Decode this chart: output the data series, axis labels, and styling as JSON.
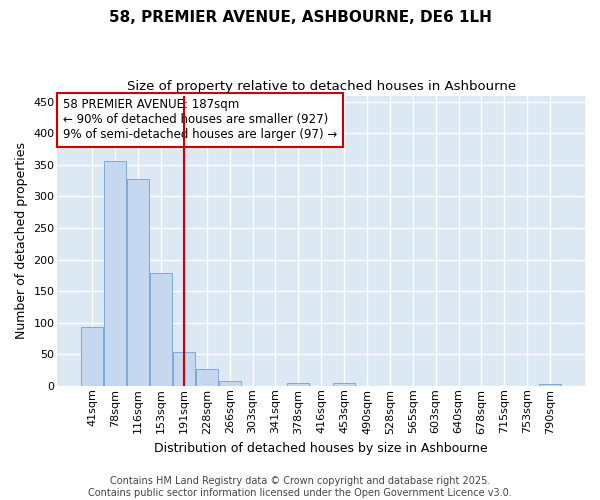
{
  "title": "58, PREMIER AVENUE, ASHBOURNE, DE6 1LH",
  "subtitle": "Size of property relative to detached houses in Ashbourne",
  "xlabel": "Distribution of detached houses by size in Ashbourne",
  "ylabel": "Number of detached properties",
  "categories": [
    "41sqm",
    "78sqm",
    "116sqm",
    "153sqm",
    "191sqm",
    "228sqm",
    "266sqm",
    "303sqm",
    "341sqm",
    "378sqm",
    "416sqm",
    "453sqm",
    "490sqm",
    "528sqm",
    "565sqm",
    "603sqm",
    "640sqm",
    "678sqm",
    "715sqm",
    "753sqm",
    "790sqm"
  ],
  "values": [
    93,
    357,
    328,
    178,
    53,
    26,
    7,
    0,
    0,
    5,
    0,
    4,
    0,
    0,
    0,
    0,
    0,
    0,
    0,
    0,
    3
  ],
  "bar_color": "#c5d8f0",
  "bar_edge_color": "#7aaad4",
  "plot_bg_color": "#dde8f5",
  "fig_bg_color": "#ffffff",
  "grid_color": "#ffffff",
  "vline_x": 4.0,
  "vline_color": "#cc0000",
  "ylim": [
    0,
    460
  ],
  "yticks": [
    0,
    50,
    100,
    150,
    200,
    250,
    300,
    350,
    400,
    450
  ],
  "annotation_text": "58 PREMIER AVENUE: 187sqm\n← 90% of detached houses are smaller (927)\n9% of semi-detached houses are larger (97) →",
  "annotation_box_facecolor": "#ffffff",
  "annotation_box_edgecolor": "#cc0000",
  "footer_line1": "Contains HM Land Registry data © Crown copyright and database right 2025.",
  "footer_line2": "Contains public sector information licensed under the Open Government Licence v3.0.",
  "title_fontsize": 11,
  "subtitle_fontsize": 9.5,
  "label_fontsize": 9,
  "tick_fontsize": 8,
  "annotation_fontsize": 8.5,
  "footer_fontsize": 7
}
